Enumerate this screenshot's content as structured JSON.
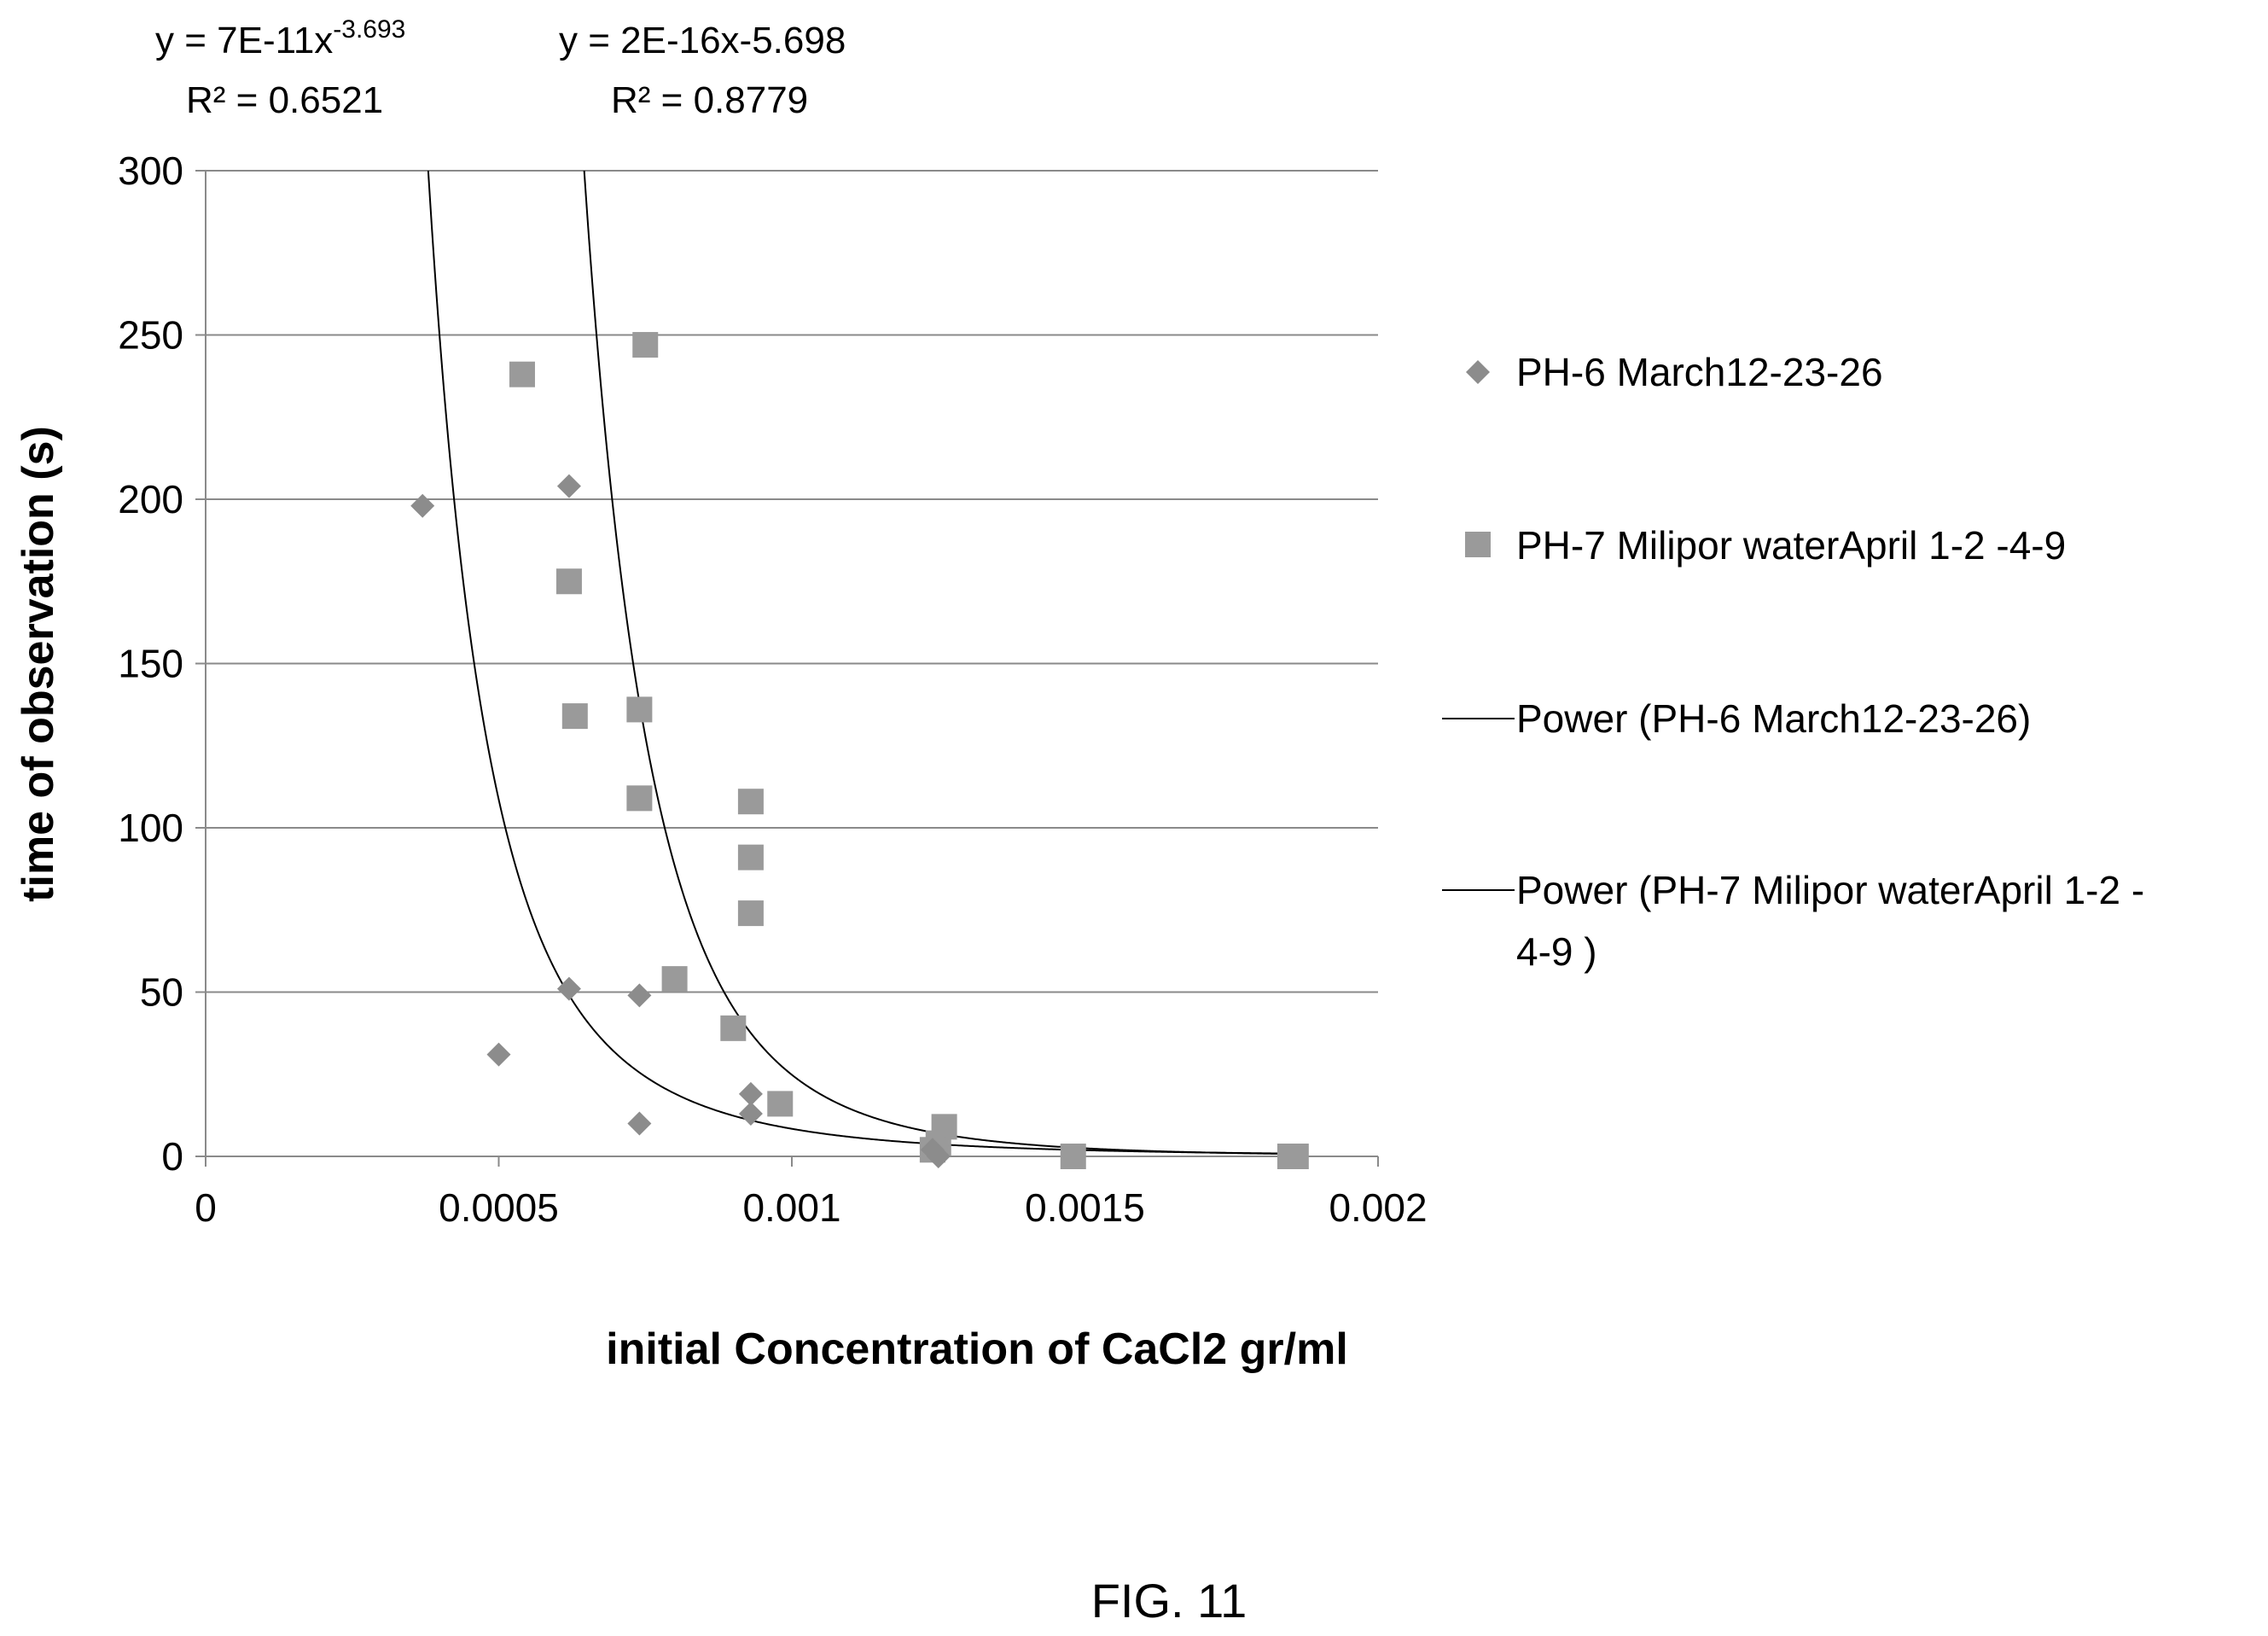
{
  "figure_label": "FIG. 11",
  "chart_data": {
    "type": "scatter",
    "xlabel": "initial Concentration of CaCl2 gr/ml",
    "ylabel": "time of observation (s)",
    "xlim": [
      0,
      0.002
    ],
    "ylim": [
      0,
      300
    ],
    "x_ticks": [
      "0",
      "0.0005",
      "0.001",
      "0.0015",
      "0.002"
    ],
    "y_ticks": [
      "0",
      "50",
      "100",
      "150",
      "200",
      "250",
      "300"
    ],
    "grid": "horizontal",
    "legend_position": "right",
    "colors": {
      "ph6": "#8c8c8c",
      "ph7": "#9a9a9a",
      "trend": "#000000",
      "grid": "#8a8a8a"
    },
    "series": [
      {
        "name": "PH-6 March12-23-26",
        "marker": "diamond",
        "points": [
          [
            0.00037,
            198
          ],
          [
            0.0005,
            31
          ],
          [
            0.00062,
            204
          ],
          [
            0.00062,
            51
          ],
          [
            0.00074,
            49
          ],
          [
            0.00074,
            10
          ],
          [
            0.00093,
            13
          ],
          [
            0.00093,
            19
          ],
          [
            0.00124,
            2
          ],
          [
            0.00125,
            0
          ]
        ]
      },
      {
        "name": "PH-7 Milipor waterApril 1-2 -4-9",
        "marker": "square",
        "points": [
          [
            0.00054,
            238
          ],
          [
            0.00075,
            247
          ],
          [
            0.00062,
            175
          ],
          [
            0.00063,
            134
          ],
          [
            0.00074,
            136
          ],
          [
            0.00074,
            109
          ],
          [
            0.00093,
            108
          ],
          [
            0.00093,
            91
          ],
          [
            0.00093,
            74
          ],
          [
            0.0008,
            54
          ],
          [
            0.0009,
            39
          ],
          [
            0.00098,
            16
          ],
          [
            0.00126,
            9
          ],
          [
            0.00125,
            4
          ],
          [
            0.00124,
            2
          ],
          [
            0.00148,
            0
          ],
          [
            0.00186,
            0
          ],
          [
            0.00185,
            0
          ]
        ]
      }
    ],
    "trendlines": [
      {
        "name": "Power (PH-6 March12-23-26)",
        "type": "power",
        "coefficient": 7e-11,
        "exponent": -3.693,
        "equation_main": "y = 7E-11x",
        "equation_sup": "-3.693",
        "r2_label": "R² = 0.6521"
      },
      {
        "name": "Power (PH-7 Milipor waterApril 1-2 -4-9 )",
        "name_line1": "Power (PH-7 Milipor waterApril 1-2 -",
        "name_line2": "4-9 )",
        "type": "power",
        "coefficient": 2e-16,
        "exponent": -5.698,
        "equation_main": "y = 2E-16x-5.698",
        "r2_label": "R² = 0.8779"
      }
    ]
  }
}
